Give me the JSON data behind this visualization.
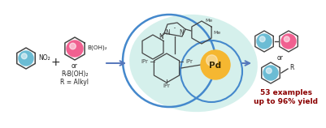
{
  "bg_color": "#ffffff",
  "teal_fill": "#c8ece6",
  "teal_fill_alpha": 0.75,
  "blue_circle_color": "#4488cc",
  "pd_color": "#f5b731",
  "pd_text": "Pd",
  "blue_ball": "#6bbcd4",
  "pink_ball": "#f06090",
  "ring_color": "#444444",
  "arrow_color": "#5577bb",
  "dark_text": "#222222",
  "red_text": "#8b0000",
  "label_53": "53 examples",
  "label_yield": "up to 96% yield"
}
